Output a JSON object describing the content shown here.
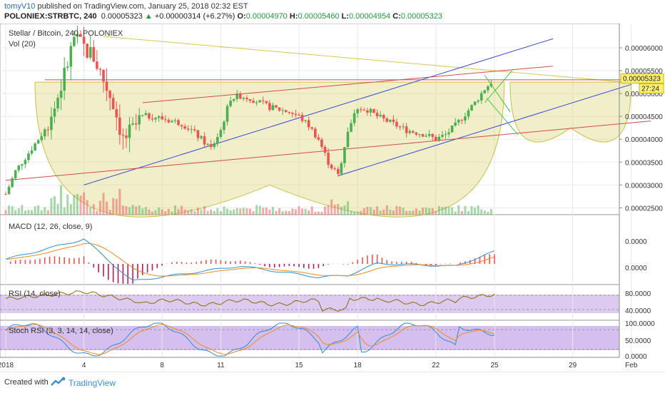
{
  "header": {
    "user": "tomyV10",
    "published": " published on TradingView.com, January 25, 2018 02:32 EST",
    "symbol": "POLONIEX:STRBTC, 240",
    "last": "0.00005323",
    "change": "+0.00000314 (+6.27%)",
    "o_label": "O:",
    "o_val": "0.00004970",
    "h_label": "H:",
    "h_val": "0.00005460",
    "l_label": "L:",
    "l_val": "0.00004954",
    "c_label": "C:",
    "c_val": "0.00005323"
  },
  "footer": {
    "created": "Created with",
    "brand": "TradingView"
  },
  "colors": {
    "up": "#4caf50",
    "down": "#ef5350",
    "macd": "#2b8fd6",
    "signal": "#f08a1e",
    "rsi": "#8b6b00",
    "stochK": "#2b8fd6",
    "stochD": "#f08a1e",
    "band": "#b38ae0",
    "cup": "#c8c04a"
  },
  "chart_data": [
    {
      "type": "candlestick",
      "title": "Stellar / Bitcoin, 240, POLONIEX",
      "subtitle": "Vol (20)",
      "x_ticks": [
        {
          "day": 0,
          "label": "2018"
        },
        {
          "day": 4,
          "label": "4"
        },
        {
          "day": 8,
          "label": "8"
        },
        {
          "day": 11,
          "label": "11"
        },
        {
          "day": 15,
          "label": "15"
        },
        {
          "day": 18,
          "label": "18"
        },
        {
          "day": 22,
          "label": "22"
        },
        {
          "day": 25,
          "label": "25"
        },
        {
          "day": 29,
          "label": "29"
        },
        {
          "day": 32,
          "label": "Feb"
        }
      ],
      "y_ticks": [
        "0.00006000",
        "0.00005500",
        "0.00005000",
        "0.00004500",
        "0.00004000",
        "0.00003500",
        "0.00003000",
        "0.00002500"
      ],
      "y_tick_values": [
        6.0,
        5.5,
        5.0,
        4.5,
        4.0,
        3.5,
        3.0,
        2.5
      ],
      "y_unit": "1e-5 BTC",
      "ylim": [
        2.35,
        6.5
      ],
      "last_price_label": "0.00005323",
      "countdown_label": "27:24",
      "price_path": [
        [
          0,
          2.8
        ],
        [
          0.5,
          3.3
        ],
        [
          1,
          3.6
        ],
        [
          1.5,
          3.9
        ],
        [
          2,
          4.2
        ],
        [
          2.5,
          4.7
        ],
        [
          3,
          5.4
        ],
        [
          3.5,
          6.2
        ],
        [
          4,
          6.0
        ],
        [
          4.5,
          5.8
        ],
        [
          5,
          5.3
        ],
        [
          5.5,
          4.8
        ],
        [
          6,
          4.0
        ],
        [
          6.5,
          4.2
        ],
        [
          7,
          4.5
        ],
        [
          7.5,
          4.5
        ],
        [
          8,
          4.45
        ],
        [
          8.5,
          4.4
        ],
        [
          9,
          4.35
        ],
        [
          9.5,
          4.2
        ],
        [
          10,
          4.0
        ],
        [
          10.5,
          3.8
        ],
        [
          11,
          4.2
        ],
        [
          11.5,
          4.9
        ],
        [
          12,
          4.95
        ],
        [
          12.5,
          4.9
        ],
        [
          13,
          4.8
        ],
        [
          13.5,
          4.7
        ],
        [
          14,
          4.65
        ],
        [
          14.5,
          4.6
        ],
        [
          15,
          4.5
        ],
        [
          15.5,
          4.3
        ],
        [
          16,
          4.0
        ],
        [
          16.5,
          3.5
        ],
        [
          17,
          3.2
        ],
        [
          17.5,
          4.2
        ],
        [
          18,
          4.7
        ],
        [
          18.5,
          4.65
        ],
        [
          19,
          4.5
        ],
        [
          19.5,
          4.4
        ],
        [
          20,
          4.3
        ],
        [
          20.5,
          4.2
        ],
        [
          21,
          4.15
        ],
        [
          21.5,
          4.1
        ],
        [
          22,
          4.0
        ],
        [
          22.5,
          4.1
        ],
        [
          23,
          4.3
        ],
        [
          23.5,
          4.55
        ],
        [
          24,
          4.8
        ],
        [
          24.5,
          5.1
        ],
        [
          25,
          5.32
        ]
      ],
      "shapes": [
        {
          "kind": "cup",
          "desc": "rounded cup",
          "x": [
            1.5,
            25.5
          ],
          "rim": 5.25,
          "bottom": 3.0
        },
        {
          "kind": "handle",
          "desc": "projected handle",
          "x": [
            25.8,
            32
          ],
          "rim": 5.25,
          "bottom": 4.25
        },
        {
          "kind": "line",
          "color": "yellow",
          "p1": [
            5,
            6.25
          ],
          "p2": [
            33,
            5.2
          ]
        },
        {
          "kind": "line",
          "color": "red",
          "p1": [
            2,
            5.3
          ],
          "p2": [
            33,
            5.3
          ]
        },
        {
          "kind": "line",
          "color": "blue",
          "p1": [
            4,
            3.0
          ],
          "p2": [
            28,
            6.2
          ]
        },
        {
          "kind": "line",
          "color": "blue",
          "p1": [
            17,
            3.2
          ],
          "p2": [
            32,
            5.2
          ]
        },
        {
          "kind": "line",
          "color": "red",
          "p1": [
            0,
            3.1
          ],
          "p2": [
            33,
            4.4
          ]
        },
        {
          "kind": "line",
          "color": "red",
          "p1": [
            7,
            4.8
          ],
          "p2": [
            28,
            5.6
          ]
        }
      ]
    },
    {
      "type": "line",
      "title": "MACD (12, 26, close, 9)",
      "y_ticks": [
        "0.0000",
        "0.0000"
      ],
      "series": [
        {
          "name": "MACD",
          "shape": "peak early, trough mid, rise at end"
        },
        {
          "name": "Signal",
          "shape": "smoothed MACD"
        }
      ]
    },
    {
      "type": "line",
      "title": "RSI (14, close)",
      "y_ticks": [
        "80.0000",
        "40.0000"
      ],
      "bands": [
        70,
        30
      ]
    },
    {
      "type": "line",
      "title": "Stoch RSI (3, 3, 14, 14, close)",
      "y_ticks": [
        "100.0000",
        "50.0000",
        "0.0000"
      ],
      "bands": [
        80,
        20
      ]
    }
  ]
}
